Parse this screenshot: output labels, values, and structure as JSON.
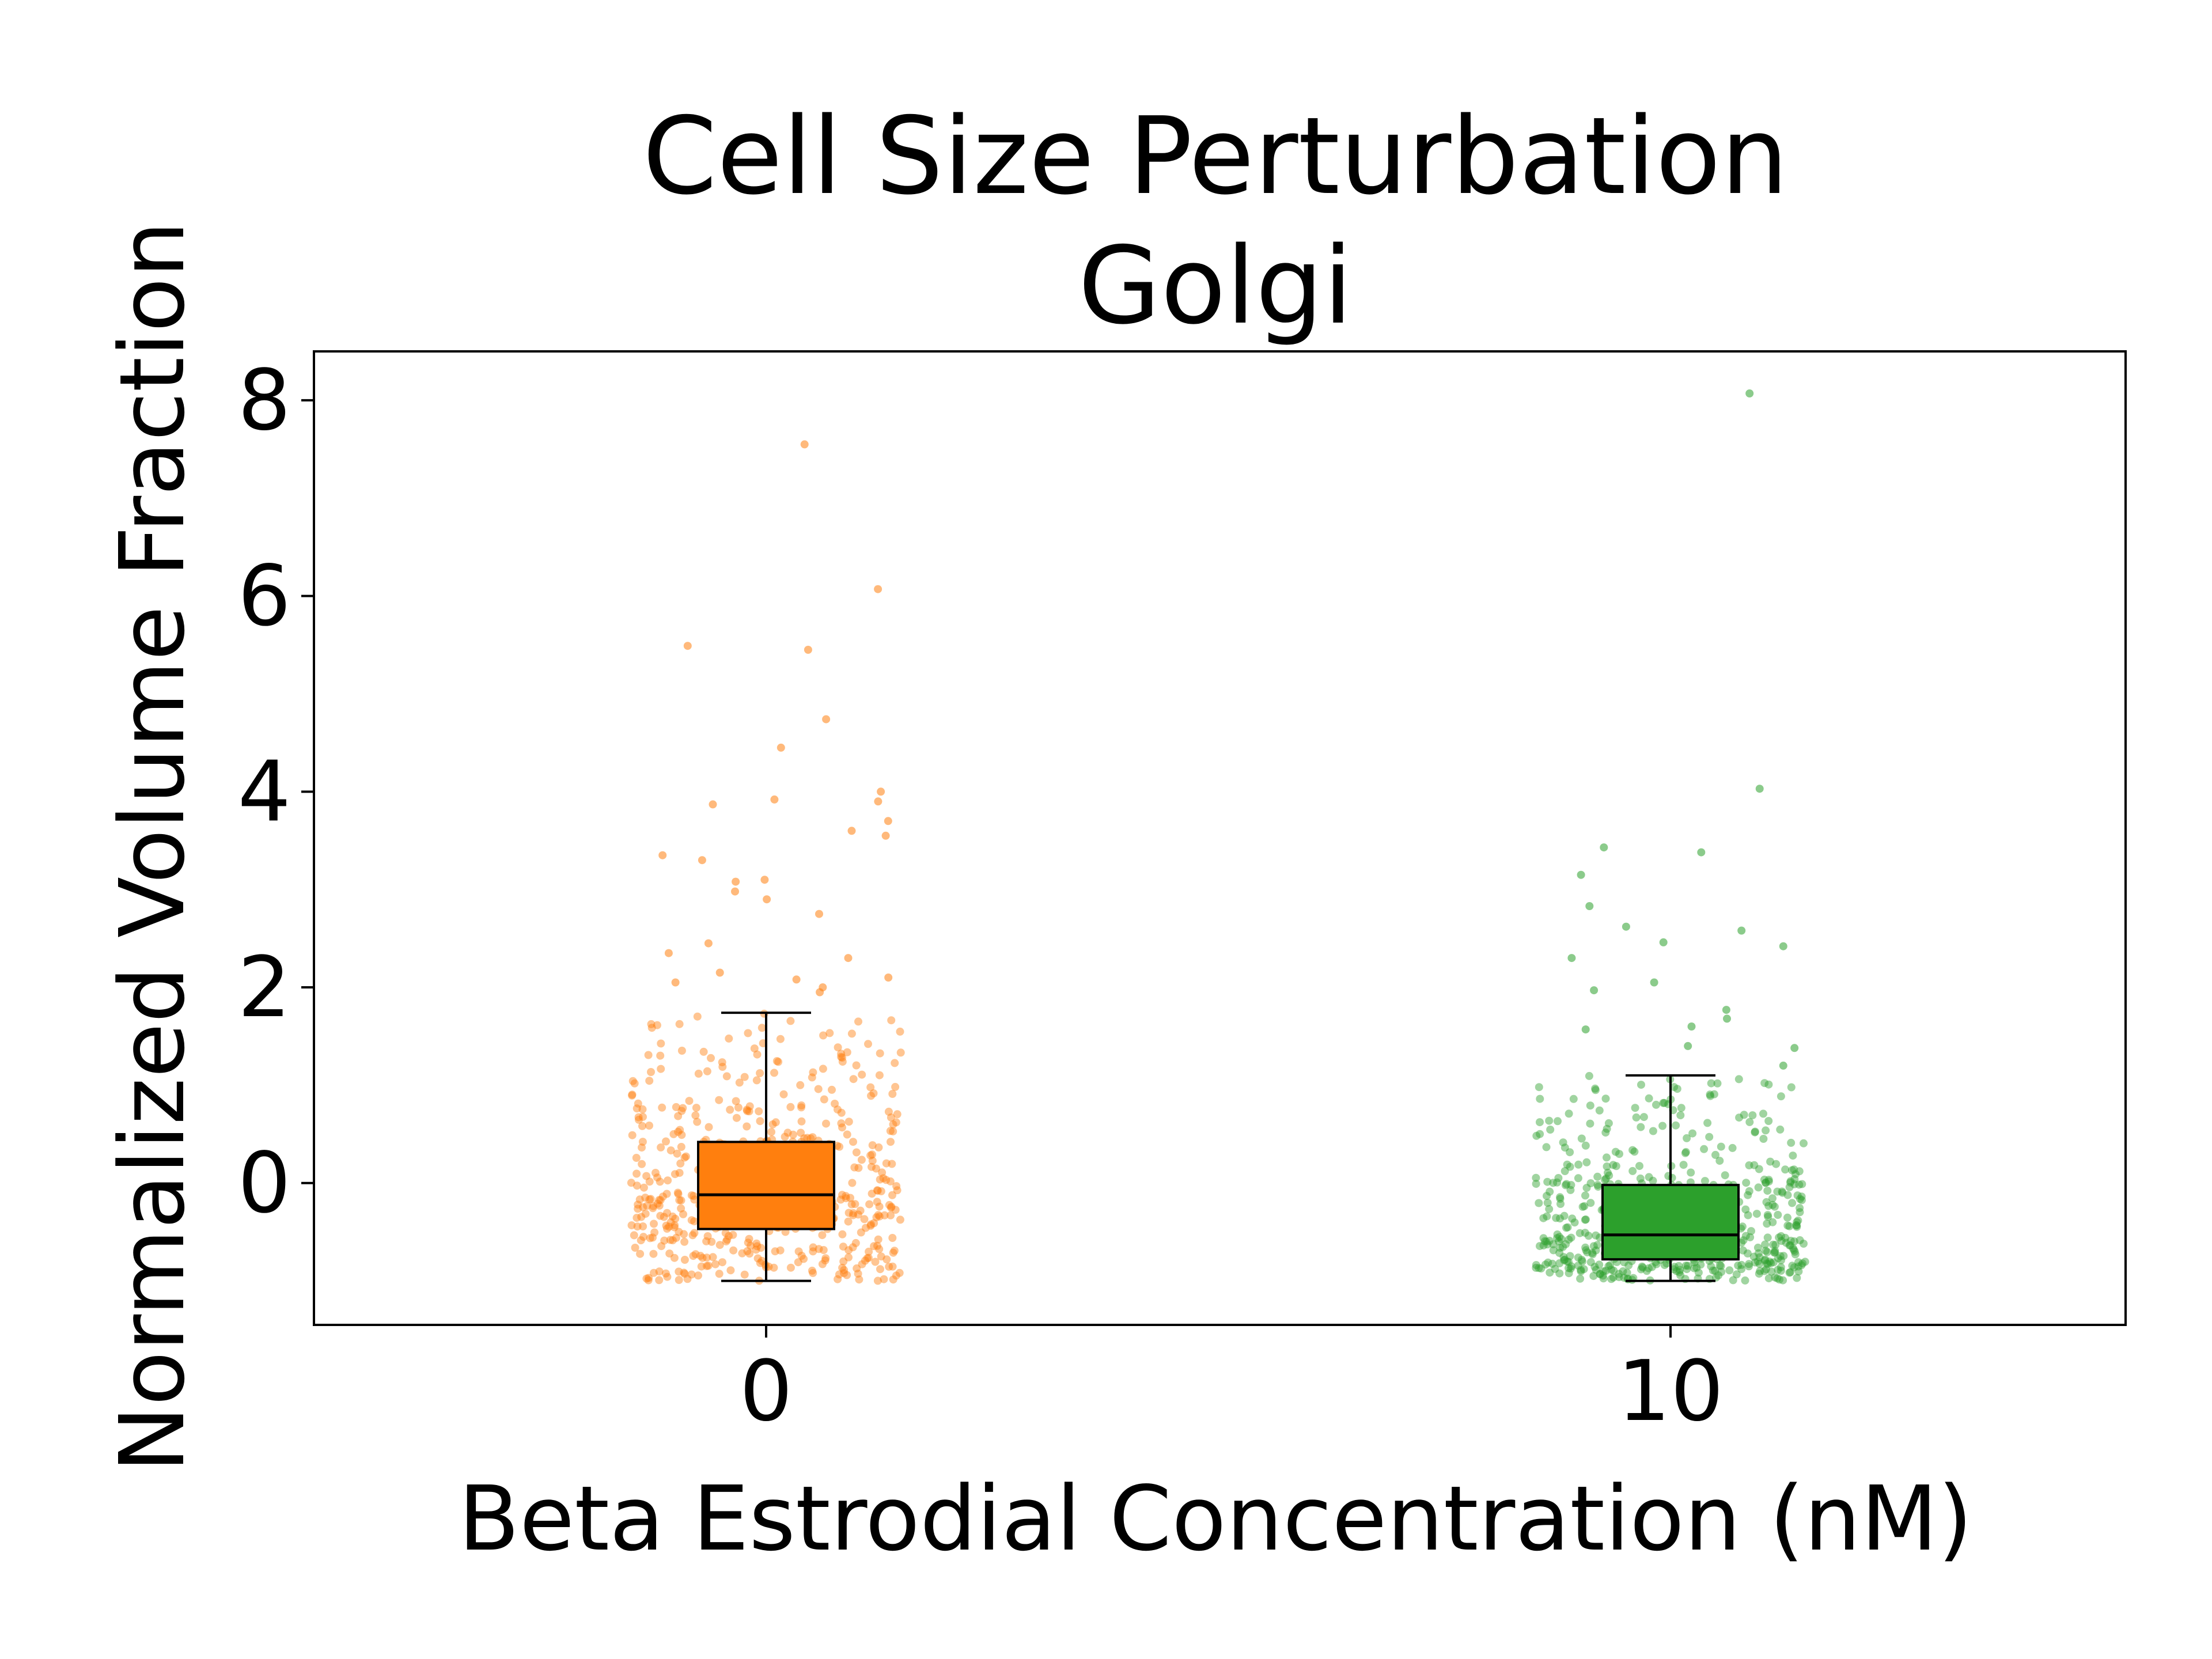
{
  "chart_data": {
    "type": "box",
    "title": "Cell Size Perturbation",
    "subtitle": "Golgi",
    "xlabel": "Beta Estrodial Concentration (nM)",
    "ylabel": "Normalized Volume Fraction",
    "categories": [
      "0",
      "10"
    ],
    "ylim": [
      -1.45,
      8.5
    ],
    "yticks": [
      0,
      2,
      4,
      6,
      8
    ],
    "grid": false,
    "legend": "none",
    "boxes": [
      {
        "category": "0",
        "color": "#ff7f0e",
        "whisker_low": -1.0,
        "q1": -0.47,
        "median": -0.12,
        "q3": 0.42,
        "whisker_high": 1.74,
        "outliers": [
          7.55,
          6.07,
          5.49,
          5.45,
          4.74,
          4.45,
          4.0,
          3.92,
          3.9,
          3.87,
          3.7,
          3.6,
          3.55,
          3.35,
          3.3,
          3.1,
          3.08,
          2.98,
          2.9,
          2.75,
          2.45,
          2.35,
          2.3,
          2.15,
          2.1,
          2.08,
          2.05,
          2.0,
          1.95
        ]
      },
      {
        "category": "10",
        "color": "#2ca02c",
        "whisker_low": -1.0,
        "q1": -0.78,
        "median": -0.53,
        "q3": -0.02,
        "whisker_high": 1.1,
        "outliers": [
          8.07,
          4.03,
          3.43,
          3.38,
          3.15,
          2.83,
          2.62,
          2.58,
          2.46,
          2.42,
          2.3,
          2.05,
          1.97,
          1.77,
          1.68,
          1.6,
          1.57,
          1.4,
          1.38,
          1.2
        ]
      }
    ],
    "points_per_group": 560
  }
}
